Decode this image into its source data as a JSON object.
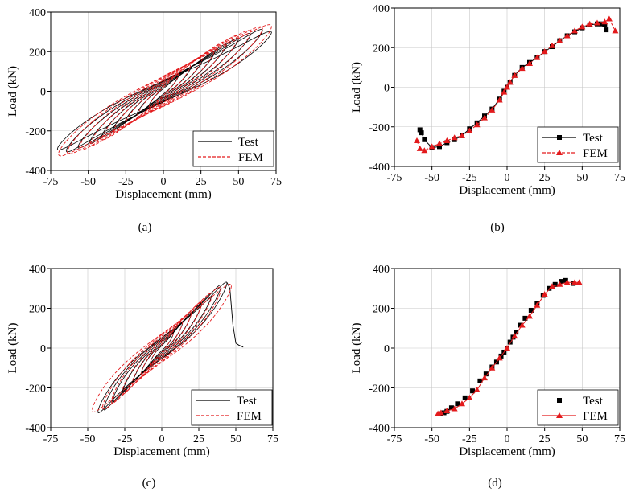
{
  "colors": {
    "test": "#000000",
    "fem": "#e31a1c",
    "grid": "#c8c8c8"
  },
  "chart_data": [
    {
      "id": "a",
      "type": "line",
      "caption": "(a)",
      "xlabel": "Displacement (mm)",
      "ylabel": "Load (kN)",
      "xlim": [
        -75,
        75
      ],
      "ylim": [
        -400,
        400
      ],
      "xticks": [
        -75,
        -50,
        -25,
        0,
        25,
        50,
        75
      ],
      "yticks": [
        -400,
        -200,
        0,
        200,
        400
      ],
      "xtick_labels": [
        "-75",
        "-50",
        "-25",
        "0",
        "25",
        "50",
        "75"
      ],
      "ytick_labels": [
        "-400",
        "-200",
        "0",
        "200",
        "400"
      ],
      "legend": {
        "position": "bottom-right",
        "entries": [
          "Test",
          "FEM"
        ]
      },
      "series": [
        {
          "name": "Test",
          "style": "hysteresis",
          "amplitudes": [
            10,
            18,
            26,
            34,
            42,
            50,
            58,
            66,
            72
          ],
          "peaks": [
            80,
            120,
            160,
            200,
            240,
            270,
            295,
            315,
            305
          ],
          "neg_scale": 0.98,
          "pinch": 0.35
        },
        {
          "name": "FEM",
          "style": "hysteresis",
          "amplitudes": [
            10,
            18,
            26,
            34,
            42,
            50,
            58,
            66,
            72
          ],
          "peaks": [
            90,
            135,
            175,
            215,
            255,
            285,
            310,
            330,
            340
          ],
          "neg_scale": 0.97,
          "pinch": 0.3
        }
      ]
    },
    {
      "id": "b",
      "type": "line",
      "caption": "(b)",
      "xlabel": "Displacement (mm)",
      "ylabel": "Load (kN)",
      "xlim": [
        -75,
        75
      ],
      "ylim": [
        -400,
        400
      ],
      "xticks": [
        -75,
        -50,
        -25,
        0,
        25,
        50,
        75
      ],
      "yticks": [
        -400,
        -200,
        0,
        200,
        400
      ],
      "xtick_labels": [
        "-75",
        "-50",
        "-25",
        "0",
        "25",
        "50",
        "75"
      ],
      "ytick_labels": [
        "-400",
        "-200",
        "0",
        "200",
        "400"
      ],
      "legend": {
        "position": "bottom-right",
        "entries": [
          "Test",
          "FEM"
        ]
      },
      "series": [
        {
          "name": "Test",
          "style": "skeleton",
          "marker": "square",
          "x": [
            -58,
            -57,
            -55,
            -50,
            -45,
            -40,
            -35,
            -30,
            -25,
            -20,
            -15,
            -10,
            -5,
            -2,
            0,
            2,
            5,
            10,
            15,
            20,
            25,
            30,
            35,
            40,
            45,
            50,
            55,
            60,
            63,
            65,
            66
          ],
          "y": [
            -215,
            -230,
            -265,
            -305,
            -300,
            -280,
            -265,
            -245,
            -210,
            -180,
            -145,
            -110,
            -60,
            -20,
            0,
            25,
            60,
            100,
            125,
            150,
            180,
            205,
            235,
            260,
            280,
            300,
            315,
            320,
            320,
            315,
            290
          ]
        },
        {
          "name": "FEM",
          "style": "skeleton",
          "marker": "triangle",
          "x": [
            -60,
            -58,
            -55,
            -50,
            -45,
            -40,
            -35,
            -30,
            -25,
            -20,
            -15,
            -10,
            -5,
            -2,
            0,
            2,
            5,
            10,
            15,
            20,
            25,
            30,
            35,
            40,
            45,
            50,
            55,
            60,
            65,
            68,
            72
          ],
          "y": [
            -270,
            -310,
            -320,
            -300,
            -285,
            -270,
            -255,
            -245,
            -220,
            -190,
            -155,
            -115,
            -65,
            -25,
            0,
            25,
            60,
            95,
            120,
            150,
            180,
            210,
            235,
            260,
            285,
            305,
            320,
            325,
            330,
            345,
            285
          ]
        }
      ]
    },
    {
      "id": "c",
      "type": "line",
      "caption": "(c)",
      "xlabel": "Displacement (mm)",
      "ylabel": "Load (kN)",
      "xlim": [
        -75,
        75
      ],
      "ylim": [
        -400,
        400
      ],
      "xticks": [
        -75,
        -50,
        -25,
        0,
        25,
        50,
        75
      ],
      "yticks": [
        -400,
        -200,
        0,
        200,
        400
      ],
      "xtick_labels": [
        "-75",
        "-50",
        "-25",
        "0",
        "25",
        "50",
        "75"
      ],
      "ytick_labels": [
        "-400",
        "-200",
        "0",
        "200",
        "400"
      ],
      "legend": {
        "position": "bottom-right",
        "entries": [
          "Test",
          "FEM"
        ]
      },
      "series": [
        {
          "name": "Test",
          "style": "hysteresis",
          "amplitudes": [
            8,
            14,
            20,
            27,
            34,
            40,
            44
          ],
          "peaks": [
            80,
            130,
            180,
            230,
            280,
            320,
            335
          ],
          "neg_scale": 0.98,
          "pinch": 0.45,
          "tail_x": [
            44,
            46,
            48,
            50,
            52,
            55
          ],
          "tail_y": [
            330,
            300,
            120,
            25,
            15,
            5
          ]
        },
        {
          "name": "FEM",
          "style": "hysteresis",
          "amplitudes": [
            8,
            14,
            20,
            27,
            34,
            40,
            47
          ],
          "peaks": [
            85,
            135,
            185,
            235,
            280,
            310,
            325
          ],
          "neg_scale": 1.0,
          "pinch": 0.35
        }
      ]
    },
    {
      "id": "d",
      "type": "line",
      "caption": "(d)",
      "xlabel": "Displacement (mm)",
      "ylabel": "Load (kN)",
      "xlim": [
        -75,
        75
      ],
      "ylim": [
        -400,
        400
      ],
      "xticks": [
        -75,
        -50,
        -25,
        0,
        25,
        50,
        75
      ],
      "yticks": [
        -400,
        -200,
        0,
        200,
        400
      ],
      "xtick_labels": [
        "-75",
        "-50",
        "-25",
        "0",
        "25",
        "50",
        "75"
      ],
      "ytick_labels": [
        "-400",
        "-200",
        "0",
        "200",
        "400"
      ],
      "legend": {
        "position": "bottom-right",
        "entries": [
          "Test",
          "FEM"
        ]
      },
      "series": [
        {
          "name": "Test",
          "style": "skeleton",
          "marker": "square",
          "connect": false,
          "x": [
            -44,
            -42,
            -40,
            -37,
            -33,
            -28,
            -23,
            -18,
            -14,
            -10,
            -7,
            -4,
            -2,
            0,
            2,
            4,
            6,
            9,
            12,
            16,
            20,
            24,
            28,
            32,
            36,
            39,
            44
          ],
          "y": [
            -330,
            -325,
            -318,
            -300,
            -280,
            -250,
            -215,
            -165,
            -130,
            -95,
            -70,
            -40,
            -20,
            0,
            30,
            55,
            80,
            115,
            150,
            190,
            225,
            265,
            300,
            320,
            335,
            340,
            325
          ]
        },
        {
          "name": "FEM",
          "style": "skeleton",
          "marker": "triangle",
          "connect": true,
          "x": [
            -46,
            -44,
            -40,
            -35,
            -30,
            -25,
            -20,
            -15,
            -10,
            -5,
            0,
            5,
            10,
            15,
            20,
            25,
            30,
            35,
            40,
            45,
            48
          ],
          "y": [
            -330,
            -325,
            -315,
            -305,
            -280,
            -250,
            -210,
            -150,
            -100,
            -50,
            0,
            60,
            115,
            160,
            215,
            270,
            310,
            320,
            330,
            330,
            330
          ]
        }
      ]
    }
  ]
}
